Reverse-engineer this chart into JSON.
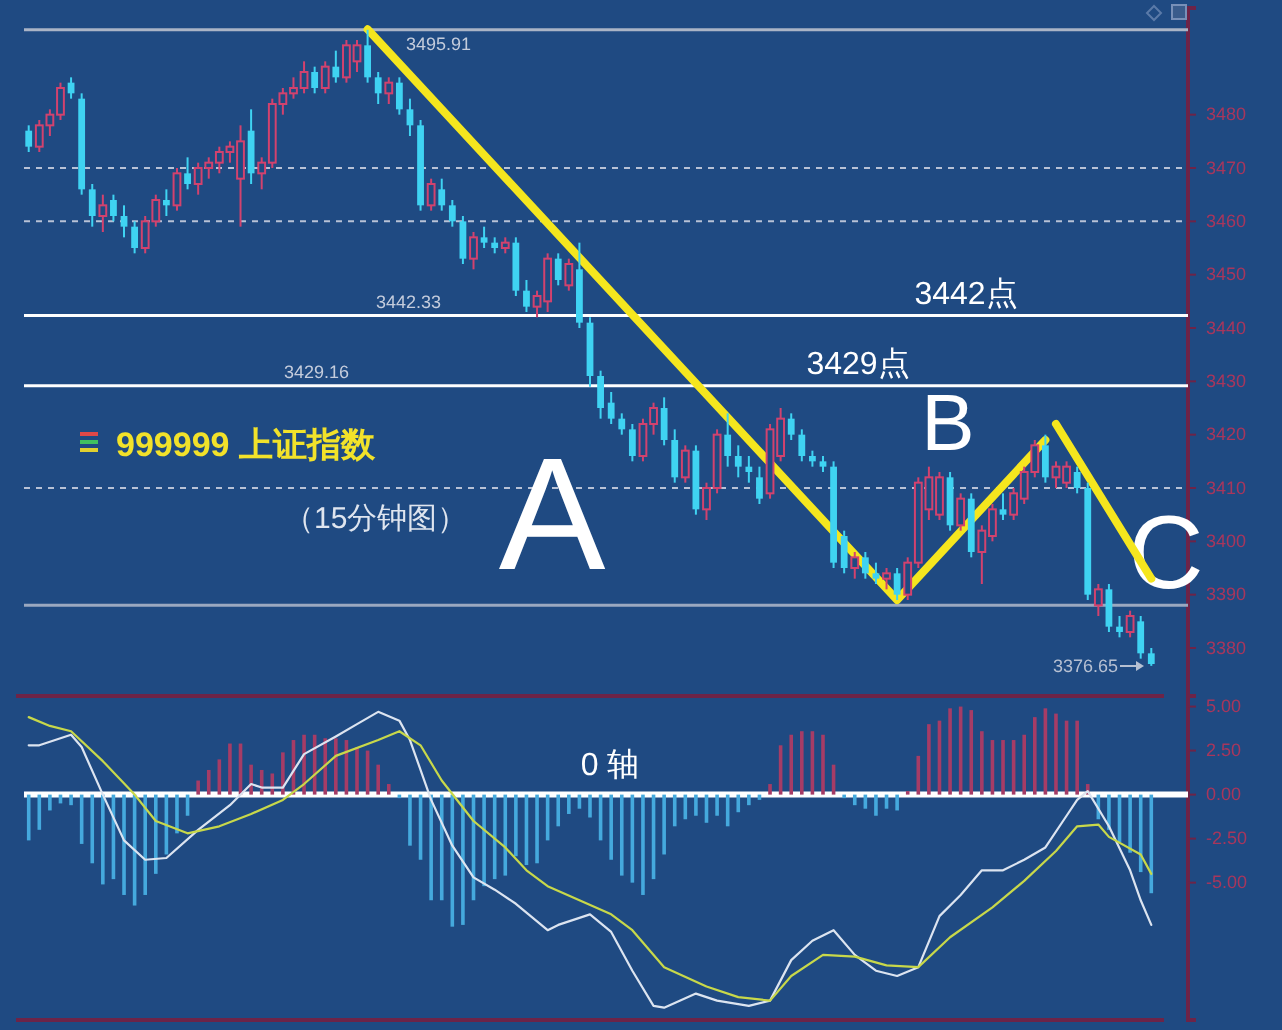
{
  "chart_data": [
    {
      "type": "candlestick",
      "ylim": [
        3371,
        3500
      ],
      "yticks": [
        3380,
        3390,
        3400,
        3410,
        3420,
        3430,
        3440,
        3450,
        3460,
        3470,
        3480
      ],
      "tick_labels": "y",
      "categories": [
        null,
        null,
        null,
        null,
        null,
        null,
        null,
        null,
        null,
        null,
        null,
        null,
        null,
        null,
        null,
        null,
        null,
        null,
        null,
        null,
        null,
        null,
        null,
        null,
        null,
        null,
        null,
        null,
        null,
        null,
        null,
        null,
        null,
        null,
        null,
        null,
        null,
        null,
        null,
        null,
        null,
        null,
        null,
        null,
        null,
        null,
        null,
        null,
        null,
        null,
        null,
        null,
        null,
        null,
        null,
        null,
        null,
        null,
        null,
        null,
        null,
        null,
        null,
        null,
        null,
        null,
        null,
        null,
        null,
        null,
        null,
        null,
        null,
        null,
        null,
        null,
        null,
        null,
        null,
        null,
        null,
        null,
        null,
        null,
        null,
        null,
        null,
        null,
        null,
        null,
        null,
        null,
        null,
        null,
        null,
        null,
        null,
        null,
        null,
        null,
        null,
        null,
        null,
        null,
        null,
        null,
        null
      ],
      "ohlc": [
        [
          3477,
          3478,
          3473,
          3474
        ],
        [
          3474,
          3479,
          3473,
          3478
        ],
        [
          3478,
          3481,
          3476,
          3480
        ],
        [
          3480,
          3486,
          3479,
          3485
        ],
        [
          3486,
          3487,
          3483,
          3484
        ],
        [
          3483,
          3484,
          3465,
          3466
        ],
        [
          3466,
          3467,
          3459,
          3461
        ],
        [
          3461,
          3465,
          3458,
          3463
        ],
        [
          3464,
          3465,
          3460,
          3461
        ],
        [
          3461,
          3463,
          3457,
          3459
        ],
        [
          3459,
          3460,
          3454,
          3455
        ],
        [
          3455,
          3461,
          3454,
          3460
        ],
        [
          3460,
          3465,
          3459,
          3464
        ],
        [
          3464,
          3466,
          3461,
          3463
        ],
        [
          3463,
          3470,
          3462,
          3469
        ],
        [
          3469,
          3472,
          3466,
          3467
        ],
        [
          3467,
          3471,
          3465,
          3470
        ],
        [
          3470,
          3472,
          3468,
          3471
        ],
        [
          3471,
          3474,
          3469,
          3473
        ],
        [
          3473,
          3475,
          3471,
          3474
        ],
        [
          3468,
          3478,
          3459,
          3475
        ],
        [
          3477,
          3481,
          3467,
          3469
        ],
        [
          3469,
          3472,
          3466,
          3471
        ],
        [
          3471,
          3483,
          3470,
          3482
        ],
        [
          3482,
          3485,
          3480,
          3484
        ],
        [
          3484,
          3487,
          3483,
          3485
        ],
        [
          3485,
          3490,
          3484,
          3488
        ],
        [
          3488,
          3489,
          3484,
          3485
        ],
        [
          3485,
          3490,
          3484,
          3489
        ],
        [
          3489,
          3492,
          3486,
          3487
        ],
        [
          3487,
          3494,
          3486,
          3493
        ],
        [
          3490,
          3494,
          3488,
          3493
        ],
        [
          3493,
          3495.91,
          3486,
          3487
        ],
        [
          3487,
          3488,
          3482,
          3484
        ],
        [
          3484,
          3487,
          3482,
          3486
        ],
        [
          3486,
          3487,
          3480,
          3481
        ],
        [
          3481,
          3483,
          3476,
          3478
        ],
        [
          3478,
          3479,
          3462,
          3463
        ],
        [
          3463,
          3468,
          3462,
          3467
        ],
        [
          3466,
          3468,
          3462,
          3463
        ],
        [
          3463,
          3464,
          3459,
          3460
        ],
        [
          3460,
          3461,
          3452,
          3453
        ],
        [
          3453,
          3458,
          3451,
          3457
        ],
        [
          3457,
          3459,
          3455,
          3456
        ],
        [
          3456,
          3457,
          3454,
          3455
        ],
        [
          3455,
          3457,
          3454,
          3456
        ],
        [
          3456,
          3457,
          3446,
          3447
        ],
        [
          3447,
          3449,
          3443,
          3444
        ],
        [
          3444,
          3447,
          3442,
          3446
        ],
        [
          3445,
          3454,
          3443,
          3453
        ],
        [
          3453,
          3454,
          3448,
          3449
        ],
        [
          3448,
          3453,
          3447,
          3452
        ],
        [
          3451,
          3456,
          3440,
          3441
        ],
        [
          3441,
          3442,
          3429,
          3431
        ],
        [
          3431,
          3432,
          3423,
          3425
        ],
        [
          3426,
          3428,
          3422,
          3423
        ],
        [
          3423,
          3424,
          3420,
          3421
        ],
        [
          3421,
          3422,
          3415,
          3416
        ],
        [
          3416,
          3423,
          3415,
          3422
        ],
        [
          3422,
          3426,
          3420,
          3425
        ],
        [
          3425,
          3427,
          3418,
          3419
        ],
        [
          3419,
          3421,
          3411,
          3412
        ],
        [
          3412,
          3418,
          3411,
          3417
        ],
        [
          3417,
          3418,
          3405,
          3406
        ],
        [
          3406,
          3411,
          3404,
          3410
        ],
        [
          3410,
          3421,
          3409,
          3420
        ],
        [
          3420,
          3424,
          3414,
          3416
        ],
        [
          3416,
          3418,
          3412,
          3414
        ],
        [
          3414,
          3416,
          3411,
          3413
        ],
        [
          3412,
          3414,
          3407,
          3408
        ],
        [
          3409,
          3422,
          3408,
          3421
        ],
        [
          3416,
          3425,
          3415,
          3423
        ],
        [
          3423,
          3424,
          3419,
          3420
        ],
        [
          3420,
          3421,
          3415,
          3416
        ],
        [
          3416,
          3417,
          3414,
          3415
        ],
        [
          3415,
          3416,
          3413,
          3414
        ],
        [
          3414,
          3415,
          3395,
          3396
        ],
        [
          3401,
          3402,
          3394,
          3395
        ],
        [
          3395,
          3398,
          3393,
          3397
        ],
        [
          3397,
          3398,
          3393,
          3394
        ],
        [
          3394,
          3396,
          3392,
          3393
        ],
        [
          3393,
          3395,
          3391,
          3394
        ],
        [
          3394,
          3395,
          3389,
          3390
        ],
        [
          3390,
          3397,
          3389,
          3396
        ],
        [
          3396,
          3412,
          3395,
          3411
        ],
        [
          3406,
          3414,
          3404,
          3412
        ],
        [
          3405,
          3413,
          3404,
          3412
        ],
        [
          3412,
          3413,
          3402,
          3403
        ],
        [
          3403,
          3409,
          3402,
          3408
        ],
        [
          3408,
          3409,
          3397,
          3398
        ],
        [
          3398,
          3403,
          3392,
          3402
        ],
        [
          3401,
          3407,
          3400,
          3406
        ],
        [
          3406,
          3409,
          3404,
          3405
        ],
        [
          3405,
          3410,
          3404,
          3409
        ],
        [
          3408,
          3414,
          3407,
          3413
        ],
        [
          3413,
          3419,
          3412,
          3418
        ],
        [
          3418,
          3420,
          3411,
          3412
        ],
        [
          3412,
          3415,
          3410,
          3414
        ],
        [
          3411,
          3415,
          3410,
          3414
        ],
        [
          3413,
          3414,
          3409,
          3410
        ],
        [
          3410,
          3411,
          3389,
          3390
        ],
        [
          3388,
          3392,
          3386,
          3391
        ],
        [
          3391,
          3392,
          3383,
          3384
        ],
        [
          3384,
          3386,
          3382,
          3383
        ],
        [
          3383,
          3387,
          3382,
          3386
        ],
        [
          3385,
          3386,
          3378,
          3379
        ],
        [
          3379,
          3380,
          3376.65,
          3377
        ]
      ],
      "colors": [
        "#3fd3f2",
        "#d2426e",
        "#d2426e",
        "#d2426e",
        "#3fd3f2",
        "#3fd3f2",
        "#3fd3f2",
        "#d2426e",
        "#3fd3f2",
        "#3fd3f2",
        "#3fd3f2",
        "#d2426e",
        "#d2426e",
        "#3fd3f2",
        "#d2426e",
        "#3fd3f2",
        "#d2426e",
        "#d2426e",
        "#d2426e",
        "#d2426e",
        "#d2426e",
        "#3fd3f2",
        "#d2426e",
        "#d2426e",
        "#d2426e",
        "#d2426e",
        "#d2426e",
        "#3fd3f2",
        "#d2426e",
        "#3fd3f2",
        "#d2426e",
        "#d2426e",
        "#3fd3f2",
        "#3fd3f2",
        "#d2426e",
        "#3fd3f2",
        "#3fd3f2",
        "#3fd3f2",
        "#d2426e",
        "#3fd3f2",
        "#3fd3f2",
        "#3fd3f2",
        "#d2426e",
        "#3fd3f2",
        "#3fd3f2",
        "#d2426e",
        "#3fd3f2",
        "#3fd3f2",
        "#d2426e",
        "#d2426e",
        "#3fd3f2",
        "#d2426e",
        "#3fd3f2",
        "#3fd3f2",
        "#3fd3f2",
        "#3fd3f2",
        "#3fd3f2",
        "#3fd3f2",
        "#d2426e",
        "#d2426e",
        "#3fd3f2",
        "#3fd3f2",
        "#d2426e",
        "#3fd3f2",
        "#d2426e",
        "#d2426e",
        "#3fd3f2",
        "#3fd3f2",
        "#3fd3f2",
        "#3fd3f2",
        "#d2426e",
        "#d2426e",
        "#3fd3f2",
        "#3fd3f2",
        "#3fd3f2",
        "#3fd3f2",
        "#3fd3f2",
        "#3fd3f2",
        "#d2426e",
        "#3fd3f2",
        "#3fd3f2",
        "#d2426e",
        "#3fd3f2",
        "#d2426e",
        "#d2426e",
        "#d2426e",
        "#d2426e",
        "#3fd3f2",
        "#d2426e",
        "#3fd3f2",
        "#d2426e",
        "#d2426e",
        "#3fd3f2",
        "#d2426e",
        "#d2426e",
        "#d2426e",
        "#3fd3f2",
        "#d2426e",
        "#d2426e",
        "#3fd3f2",
        "#3fd3f2",
        "#d2426e",
        "#3fd3f2",
        "#3fd3f2",
        "#d2426e",
        "#3fd3f2",
        "#3fd3f2"
      ],
      "series": [
        {
          "type": "line",
          "color": "#f5e61e",
          "values": [
            null,
            null,
            null,
            null,
            null,
            null,
            null,
            null,
            null,
            null,
            null,
            null,
            null,
            null,
            null,
            null,
            null,
            null,
            null,
            null,
            null,
            null,
            null,
            null,
            null,
            null,
            null,
            null,
            null,
            null,
            null,
            null,
            3496,
            null,
            null,
            null,
            null,
            null,
            null,
            null,
            null,
            null,
            null,
            null,
            null,
            null,
            null,
            null,
            null,
            null,
            null,
            null,
            null,
            null,
            null,
            null,
            null,
            null,
            null,
            null,
            null,
            null,
            null,
            null,
            null,
            null,
            null,
            null,
            null,
            null,
            null,
            null,
            null,
            null,
            null,
            null,
            null,
            null,
            null,
            null,
            null,
            null,
            3389,
            null,
            null,
            null,
            null,
            null,
            null,
            null,
            null,
            null,
            null,
            null,
            null,
            null,
            3419,
            null,
            null,
            null,
            null,
            null,
            null,
            null,
            null,
            null,
            null
          ]
        },
        {
          "type": "line",
          "color": "#f5e61e",
          "values": [
            null,
            null,
            null,
            null,
            null,
            null,
            null,
            null,
            null,
            null,
            null,
            null,
            null,
            null,
            null,
            null,
            null,
            null,
            null,
            null,
            null,
            null,
            null,
            null,
            null,
            null,
            null,
            null,
            null,
            null,
            null,
            null,
            null,
            null,
            null,
            null,
            null,
            null,
            null,
            null,
            null,
            null,
            null,
            null,
            null,
            null,
            null,
            null,
            null,
            null,
            null,
            null,
            null,
            null,
            null,
            null,
            null,
            null,
            null,
            null,
            null,
            null,
            null,
            null,
            null,
            null,
            null,
            null,
            null,
            null,
            null,
            null,
            null,
            null,
            null,
            null,
            null,
            null,
            null,
            null,
            null,
            null,
            null,
            null,
            null,
            null,
            null,
            null,
            null,
            null,
            null,
            null,
            null,
            null,
            null,
            null,
            null,
            3422,
            null,
            null,
            null,
            null,
            null,
            null,
            null,
            null,
            3393
          ]
        }
      ],
      "ref_lines": [
        {
          "axis": "y",
          "value": 3495.91,
          "label": "3495.91",
          "color": "#aab4c6"
        },
        {
          "axis": "y",
          "value": 3470,
          "line_style": "dashed",
          "color": "#b8c2d6"
        },
        {
          "axis": "y",
          "value": 3460,
          "line_style": "dashed",
          "color": "#b8c2d6"
        },
        {
          "axis": "y",
          "value": 3442.33,
          "label": "3442.33",
          "color": "#ffffff"
        },
        {
          "axis": "y",
          "value": 3429.16,
          "label": "3429.16",
          "color": "#ffffff"
        },
        {
          "axis": "y",
          "value": 3410,
          "line_style": "dashed",
          "color": "#b8c2d6"
        },
        {
          "axis": "y",
          "value": 3388,
          "color": "#9aa8c0"
        }
      ],
      "annotations": [
        "999999 上证指数",
        "（15分钟图）",
        "A",
        "B",
        "C",
        "3376.65",
        {
          "text": "3442点",
          "y": 3442.33
        },
        {
          "text": "3429点",
          "y": 3429.16
        }
      ]
    },
    {
      "type": "bar",
      "ylim": [
        -12.8,
        5.6
      ],
      "yticks": [
        {
          "value": 5,
          "label": "5.00"
        },
        {
          "value": 2.5,
          "label": "2.50"
        },
        {
          "value": 0,
          "label": "0.00"
        },
        {
          "value": -2.5,
          "label": "-2.50"
        },
        {
          "value": -5,
          "label": "-5.00"
        }
      ],
      "tick_labels": "y",
      "categories": [
        null,
        null,
        null,
        null,
        null,
        null,
        null,
        null,
        null,
        null,
        null,
        null,
        null,
        null,
        null,
        null,
        null,
        null,
        null,
        null,
        null,
        null,
        null,
        null,
        null,
        null,
        null,
        null,
        null,
        null,
        null,
        null,
        null,
        null,
        null,
        null,
        null,
        null,
        null,
        null,
        null,
        null,
        null,
        null,
        null,
        null,
        null,
        null,
        null,
        null,
        null,
        null,
        null,
        null,
        null,
        null,
        null,
        null,
        null,
        null,
        null,
        null,
        null,
        null,
        null,
        null,
        null,
        null,
        null,
        null,
        null,
        null,
        null,
        null,
        null,
        null,
        null,
        null,
        null,
        null,
        null,
        null,
        null,
        null,
        null,
        null,
        null,
        null,
        null,
        null,
        null,
        null,
        null,
        null,
        null,
        null,
        null,
        null,
        null,
        null,
        null,
        null,
        null,
        null,
        null,
        null,
        null
      ],
      "series": [
        {
          "type": "bar",
          "values": [
            -2.6,
            -2.0,
            -0.9,
            -0.5,
            -0.6,
            -2.8,
            -3.9,
            -5.1,
            -4.8,
            -5.7,
            -6.3,
            -5.7,
            -4.5,
            -3.4,
            -2.2,
            -1.2,
            0.8,
            1.4,
            2.0,
            2.9,
            2.9,
            1.7,
            1.4,
            1.2,
            2.4,
            3.1,
            3.4,
            3.4,
            3.2,
            3.2,
            3.1,
            2.7,
            2.5,
            1.7,
            0.6,
            -0.2,
            -2.9,
            -3.7,
            -6.0,
            -6.0,
            -7.5,
            -7.4,
            -6.0,
            -5.2,
            -4.8,
            -4.6,
            -3.5,
            -4.0,
            -3.9,
            -2.6,
            -1.8,
            -1.1,
            -0.8,
            -1.3,
            -2.6,
            -3.7,
            -4.6,
            -5.0,
            -5.7,
            -4.8,
            -3.4,
            -1.8,
            -1.4,
            -1.2,
            -1.6,
            -1.2,
            -1.8,
            -1.0,
            -0.6,
            -0.3,
            0.6,
            2.8,
            3.4,
            3.6,
            3.6,
            3.4,
            1.7,
            -0.2,
            -0.6,
            -0.8,
            -1.2,
            -0.8,
            -0.9,
            0.2,
            2.2,
            4.0,
            4.2,
            4.9,
            5.0,
            4.8,
            3.6,
            3.1,
            3.1,
            3.1,
            3.4,
            4.4,
            4.9,
            4.6,
            4.2,
            4.2,
            0.6,
            -1.4,
            -2.0,
            -2.7,
            -3.3,
            -4.4,
            -5.6
          ],
          "colors": [
            "#45a9dd",
            "#45a9dd",
            "#45a9dd",
            "#45a9dd",
            "#45a9dd",
            "#45a9dd",
            "#45a9dd",
            "#45a9dd",
            "#45a9dd",
            "#45a9dd",
            "#45a9dd",
            "#45a9dd",
            "#45a9dd",
            "#45a9dd",
            "#45a9dd",
            "#45a9dd",
            "#a63c66",
            "#a63c66",
            "#a63c66",
            "#a63c66",
            "#a63c66",
            "#a63c66",
            "#a63c66",
            "#a63c66",
            "#a63c66",
            "#a63c66",
            "#a63c66",
            "#a63c66",
            "#a63c66",
            "#a63c66",
            "#a63c66",
            "#a63c66",
            "#a63c66",
            "#a63c66",
            "#a63c66",
            "#45a9dd",
            "#45a9dd",
            "#45a9dd",
            "#45a9dd",
            "#45a9dd",
            "#45a9dd",
            "#45a9dd",
            "#45a9dd",
            "#45a9dd",
            "#45a9dd",
            "#45a9dd",
            "#45a9dd",
            "#45a9dd",
            "#45a9dd",
            "#45a9dd",
            "#45a9dd",
            "#45a9dd",
            "#45a9dd",
            "#45a9dd",
            "#45a9dd",
            "#45a9dd",
            "#45a9dd",
            "#45a9dd",
            "#45a9dd",
            "#45a9dd",
            "#45a9dd",
            "#45a9dd",
            "#45a9dd",
            "#45a9dd",
            "#45a9dd",
            "#45a9dd",
            "#45a9dd",
            "#45a9dd",
            "#45a9dd",
            "#45a9dd",
            "#a63c66",
            "#a63c66",
            "#a63c66",
            "#a63c66",
            "#a63c66",
            "#a63c66",
            "#a63c66",
            "#45a9dd",
            "#45a9dd",
            "#45a9dd",
            "#45a9dd",
            "#45a9dd",
            "#45a9dd",
            "#a63c66",
            "#a63c66",
            "#a63c66",
            "#a63c66",
            "#a63c66",
            "#a63c66",
            "#a63c66",
            "#a63c66",
            "#a63c66",
            "#a63c66",
            "#a63c66",
            "#a63c66",
            "#a63c66",
            "#a63c66",
            "#a63c66",
            "#a63c66",
            "#a63c66",
            "#a63c66",
            "#45a9dd",
            "#45a9dd",
            "#45a9dd",
            "#45a9dd",
            "#45a9dd",
            "#45a9dd"
          ]
        },
        {
          "type": "line",
          "color": "#dce4f0",
          "values": [
            2.8,
            2.8,
            null,
            null,
            3.4,
            2.7,
            null,
            0,
            null,
            -2.6,
            null,
            -3.7,
            null,
            -3.6,
            null,
            null,
            -2.0,
            null,
            null,
            -0.6,
            null,
            0.6,
            0.4,
            null,
            0.4,
            null,
            2.3,
            null,
            null,
            3.3,
            null,
            4.0,
            null,
            4.7,
            null,
            4.2,
            3.1,
            null,
            -0.3,
            null,
            -2.9,
            null,
            -4.7,
            null,
            -5.4,
            null,
            -6.2,
            null,
            null,
            -7.7,
            -7.4,
            null,
            null,
            -6.8,
            null,
            -7.8,
            null,
            -10.0,
            null,
            -12.0,
            -12.1,
            null,
            null,
            -11.3,
            null,
            -11.7,
            null,
            -11.9,
            -12.0,
            null,
            -11.7,
            null,
            -9.4,
            null,
            -8.3,
            null,
            -7.7,
            null,
            -9.1,
            null,
            -10.0,
            null,
            -10.3,
            null,
            -9.8,
            null,
            -6.9,
            null,
            -5.7,
            null,
            -4.3,
            null,
            -4.3,
            null,
            -3.7,
            null,
            -3.0,
            null,
            -1.2,
            -0.3,
            0.2,
            null,
            -1.8,
            null,
            -4.3,
            -6.0,
            -7.4
          ]
        },
        {
          "type": "line",
          "color": "#c8d84a",
          "values": [
            4.4,
            null,
            3.9,
            null,
            3.6,
            null,
            null,
            1.9,
            null,
            null,
            0,
            null,
            -1.5,
            null,
            null,
            -2.2,
            null,
            null,
            -1.8,
            null,
            null,
            -1.1,
            null,
            null,
            -0.3,
            null,
            0.6,
            null,
            null,
            2.2,
            null,
            null,
            null,
            3.1,
            null,
            3.6,
            null,
            2.8,
            null,
            0.8,
            null,
            null,
            -1.5,
            null,
            null,
            -3.0,
            null,
            -4.3,
            null,
            -5.2,
            null,
            null,
            -6.0,
            null,
            null,
            -6.8,
            null,
            -7.7,
            null,
            null,
            -9.8,
            null,
            null,
            null,
            -10.9,
            null,
            null,
            -11.5,
            null,
            null,
            -11.7,
            null,
            -10.3,
            null,
            null,
            -9.1,
            null,
            null,
            -9.2,
            null,
            null,
            -9.7,
            null,
            null,
            -9.8,
            null,
            null,
            -8.1,
            null,
            null,
            null,
            -6.4,
            null,
            null,
            -4.9,
            null,
            null,
            -3.2,
            null,
            -1.8,
            null,
            -1.7,
            -2.4,
            null,
            null,
            -3.4,
            -4.5
          ]
        }
      ],
      "ref_lines": [
        {
          "axis": "y",
          "value": 0,
          "label": "0 轴",
          "color": "#ffffff"
        }
      ]
    }
  ]
}
